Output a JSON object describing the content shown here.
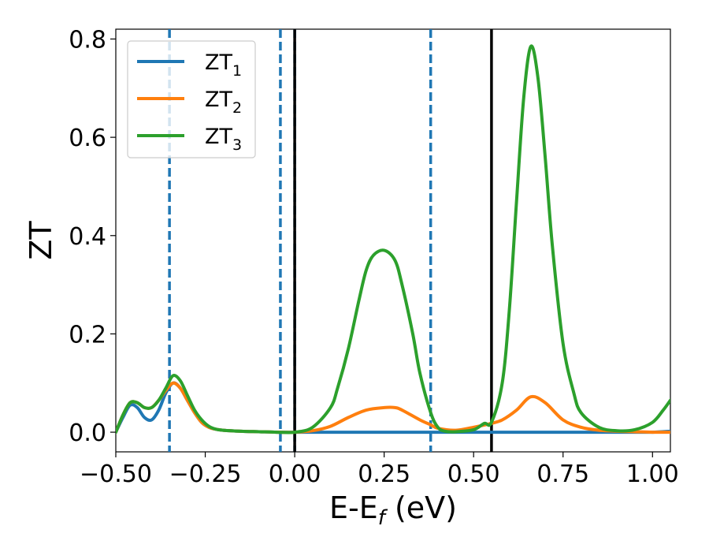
{
  "chart_data": {
    "type": "line",
    "title": "",
    "xlabel": {
      "main": "E-E",
      "sub": "f",
      "unit": " (eV)"
    },
    "ylabel": "ZT",
    "xlim": [
      -0.5,
      1.05
    ],
    "ylim": [
      -0.04,
      0.82
    ],
    "xticks": [
      -0.5,
      -0.25,
      0.0,
      0.25,
      0.5,
      0.75,
      1.0
    ],
    "xtick_labels": [
      "−0.50",
      "−0.25",
      "0.00",
      "0.25",
      "0.50",
      "0.75",
      "1.00"
    ],
    "yticks": [
      0.0,
      0.2,
      0.4,
      0.6,
      0.8
    ],
    "ytick_labels": [
      "0.0",
      "0.2",
      "0.4",
      "0.6",
      "0.8"
    ],
    "grid": false,
    "legend_position": "top-left",
    "vlines": [
      {
        "x": -0.35,
        "style": "dashed",
        "color": "#1f77b4"
      },
      {
        "x": -0.04,
        "style": "dashed",
        "color": "#1f77b4"
      },
      {
        "x": 0.0,
        "style": "dashed",
        "color": "#1f77b4"
      },
      {
        "x": 0.0,
        "style": "solid",
        "color": "#000000"
      },
      {
        "x": 0.38,
        "style": "dashed",
        "color": "#1f77b4"
      },
      {
        "x": 0.55,
        "style": "solid",
        "color": "#000000"
      }
    ],
    "series": [
      {
        "name": "ZT",
        "name_sub": "1",
        "color": "#1f77b4",
        "x": [
          -0.5,
          -0.48,
          -0.46,
          -0.44,
          -0.42,
          -0.4,
          -0.38,
          -0.36,
          -0.34,
          -0.32,
          -0.3,
          -0.28,
          -0.26,
          -0.24,
          -0.22,
          -0.2,
          -0.15,
          -0.1,
          -0.05,
          0.0,
          0.05,
          0.1,
          0.15,
          0.2,
          0.25,
          0.3,
          0.35,
          0.4,
          0.45,
          0.5,
          0.55,
          0.6,
          0.65,
          0.66,
          0.7,
          0.75,
          0.8,
          0.85,
          0.9,
          0.95,
          1.0,
          1.05
        ],
        "y": [
          0.0,
          0.03,
          0.055,
          0.05,
          0.03,
          0.025,
          0.045,
          0.08,
          0.1,
          0.09,
          0.065,
          0.04,
          0.02,
          0.01,
          0.006,
          0.004,
          0.002,
          0.001,
          0.0,
          0.0,
          0.0,
          0.0,
          0.0,
          0.0,
          0.0,
          0.0,
          0.0,
          0.0,
          0.0,
          0.0,
          0.0,
          0.0,
          0.0,
          0.0,
          0.0,
          0.0,
          0.0,
          0.0,
          0.0,
          0.0,
          0.0,
          0.002
        ]
      },
      {
        "name": "ZT",
        "name_sub": "2",
        "color": "#ff7f0e",
        "x": [
          -0.5,
          -0.48,
          -0.46,
          -0.44,
          -0.42,
          -0.4,
          -0.38,
          -0.36,
          -0.34,
          -0.32,
          -0.3,
          -0.28,
          -0.26,
          -0.24,
          -0.22,
          -0.2,
          -0.15,
          -0.1,
          -0.05,
          0.0,
          0.05,
          0.1,
          0.15,
          0.2,
          0.25,
          0.28,
          0.3,
          0.35,
          0.38,
          0.4,
          0.45,
          0.5,
          0.55,
          0.58,
          0.62,
          0.66,
          0.7,
          0.75,
          0.8,
          0.85,
          0.9,
          0.95,
          1.0,
          1.05
        ],
        "y": [
          0.0,
          0.035,
          0.06,
          0.06,
          0.05,
          0.05,
          0.065,
          0.085,
          0.1,
          0.09,
          0.065,
          0.04,
          0.02,
          0.01,
          0.006,
          0.004,
          0.002,
          0.001,
          0.0,
          0.0,
          0.003,
          0.012,
          0.03,
          0.045,
          0.05,
          0.05,
          0.045,
          0.025,
          0.015,
          0.008,
          0.004,
          0.01,
          0.018,
          0.025,
          0.045,
          0.072,
          0.06,
          0.025,
          0.01,
          0.004,
          0.002,
          0.001,
          0.0,
          0.0
        ]
      },
      {
        "name": "ZT",
        "name_sub": "3",
        "color": "#2ca02c",
        "x": [
          -0.5,
          -0.48,
          -0.46,
          -0.44,
          -0.42,
          -0.4,
          -0.38,
          -0.36,
          -0.34,
          -0.32,
          -0.3,
          -0.28,
          -0.26,
          -0.24,
          -0.22,
          -0.2,
          -0.15,
          -0.1,
          -0.05,
          0.0,
          0.05,
          0.1,
          0.12,
          0.15,
          0.18,
          0.2,
          0.22,
          0.25,
          0.28,
          0.3,
          0.33,
          0.35,
          0.38,
          0.4,
          0.42,
          0.45,
          0.5,
          0.53,
          0.55,
          0.58,
          0.6,
          0.62,
          0.64,
          0.66,
          0.68,
          0.7,
          0.72,
          0.75,
          0.78,
          0.8,
          0.85,
          0.9,
          0.95,
          1.0,
          1.03,
          1.05
        ],
        "y": [
          0.0,
          0.035,
          0.06,
          0.06,
          0.05,
          0.05,
          0.065,
          0.09,
          0.115,
          0.105,
          0.075,
          0.045,
          0.025,
          0.012,
          0.006,
          0.004,
          0.002,
          0.001,
          0.0,
          0.0,
          0.01,
          0.05,
          0.09,
          0.17,
          0.27,
          0.33,
          0.36,
          0.37,
          0.35,
          0.3,
          0.2,
          0.12,
          0.04,
          0.01,
          0.002,
          0.001,
          0.005,
          0.018,
          0.02,
          0.1,
          0.25,
          0.47,
          0.68,
          0.785,
          0.72,
          0.56,
          0.38,
          0.18,
          0.08,
          0.04,
          0.01,
          0.003,
          0.005,
          0.02,
          0.045,
          0.065
        ]
      }
    ]
  }
}
